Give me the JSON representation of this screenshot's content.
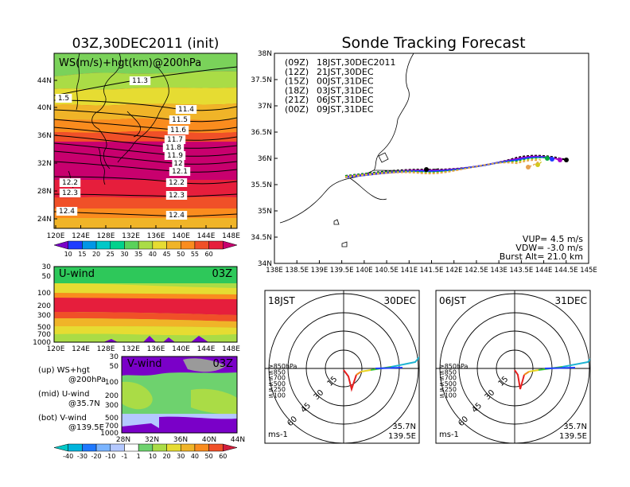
{
  "page": {
    "left_title": "03Z,30DEC2011 (init)",
    "right_title": "Sonde Tracking Forecast"
  },
  "upper_panel": {
    "label": "WS(m/s)+hgt(km)@200hPa",
    "lat_ticks": [
      "44N",
      "40N",
      "36N",
      "32N",
      "28N",
      "24N"
    ],
    "lon_ticks": [
      "120E",
      "124E",
      "128E",
      "132E",
      "136E",
      "140E",
      "144E",
      "148E"
    ],
    "height_labels": [
      "11.3",
      "1.5",
      "11.4",
      "11.5",
      "11.6",
      "11.7",
      "11.8",
      "11.9",
      "12",
      "12.1",
      "12.2",
      "12.2",
      "12.3",
      "12.3",
      "12.4",
      "12.4"
    ],
    "colorbar": {
      "labels": [
        "10",
        "15",
        "20",
        "25",
        "30",
        "35",
        "40",
        "45",
        "50",
        "55",
        "60"
      ],
      "colors": [
        "#7a00c8",
        "#1e3cff",
        "#0096e6",
        "#00c8c8",
        "#00d28c",
        "#5ad25a",
        "#aadc46",
        "#e6dc32",
        "#f0b428",
        "#fa8c1e",
        "#f05028",
        "#e61e3c",
        "#c8006e"
      ]
    }
  },
  "mid_panel": {
    "label": "U-wind",
    "time": "03Z",
    "pressure_ticks": [
      "30",
      "50",
      "100",
      "200",
      "300",
      "500",
      "700",
      "1000"
    ],
    "lon_ticks": [
      "120E",
      "124E",
      "128E",
      "132E",
      "136E",
      "140E",
      "144E",
      "148E"
    ]
  },
  "bottom_panel": {
    "label": "V-wind",
    "time": "03Z",
    "pressure_ticks": [
      "30",
      "50",
      "100",
      "200",
      "300",
      "500",
      "700",
      "1000"
    ],
    "lat_ticks": [
      "28N",
      "32N",
      "36N",
      "40N",
      "44N"
    ],
    "colorbar": {
      "labels": [
        "-40",
        "-30",
        "-20",
        "-10",
        "-1",
        "1",
        "10",
        "20",
        "30",
        "40",
        "50",
        "60"
      ],
      "colors": [
        "#00c8c8",
        "#00b4dc",
        "#1e78ff",
        "#7ab4ff",
        "#b4c8ff",
        "#ffffff",
        "#6ed26e",
        "#aadc46",
        "#e6dc32",
        "#f0b428",
        "#fa8c1e",
        "#f05028",
        "#d21e3c"
      ]
    }
  },
  "notes": [
    {
      "a": "(up) WS+hgt",
      "b": "@200hPa"
    },
    {
      "a": "(mid) U-wind",
      "b": "@35.7N"
    },
    {
      "a": "(bot) V-wind",
      "b": "@139.5E"
    }
  ],
  "track_map": {
    "lat_ticks": [
      "38N",
      "37.5N",
      "37N",
      "36.5N",
      "36N",
      "35.5N",
      "35N",
      "34.5N",
      "34N"
    ],
    "lon_ticks": [
      "138E",
      "138.5E",
      "139E",
      "139.5E",
      "140E",
      "140.5E",
      "141E",
      "141.5E",
      "142E",
      "142.5E",
      "143E",
      "143.5E",
      "144E",
      "144.5E",
      "145E"
    ],
    "runs": [
      {
        "code": "(09Z)",
        "jst": "18JST,30DEC2011",
        "color": "#000000"
      },
      {
        "code": "(12Z)",
        "jst": "21JST,30DEC",
        "color": "#aa00c8"
      },
      {
        "code": "(15Z)",
        "jst": "00JST,31DEC",
        "color": "#1e3cff"
      },
      {
        "code": "(18Z)",
        "jst": "03JST,31DEC",
        "color": "#00aa3c"
      },
      {
        "code": "(21Z)",
        "jst": "06JST,31DEC",
        "color": "#d2c81e"
      },
      {
        "code": "(00Z)",
        "jst": "09JST,31DEC",
        "color": "#e6a050"
      }
    ],
    "vup": "VUP=  4.5 m/s",
    "vdw": "VDW= -3.0 m/s",
    "burst": "Burst Alt= 21.0 km"
  },
  "hodographs": [
    {
      "time": "18JST",
      "date": "30DEC",
      "lat": "35.7N",
      "lon": "139.5E",
      "unit": "ms-1"
    },
    {
      "time": "06JST",
      "date": "31DEC",
      "lat": "35.7N",
      "lon": "139.5E",
      "unit": "ms-1"
    }
  ],
  "hodo_common": {
    "ring_labels": [
      "15",
      "30",
      "45",
      "60"
    ],
    "levels": [
      {
        "label": "≥850hPa",
        "color": "#e61e1e"
      },
      {
        "label": "≤850",
        "color": "#f08c1e"
      },
      {
        "label": "≤700",
        "color": "#e6d21e"
      },
      {
        "label": "≤500",
        "color": "#3cc83c"
      },
      {
        "label": "≤250",
        "color": "#1eb4d2"
      },
      {
        "label": "≤100",
        "color": "#1e3cff"
      }
    ]
  }
}
